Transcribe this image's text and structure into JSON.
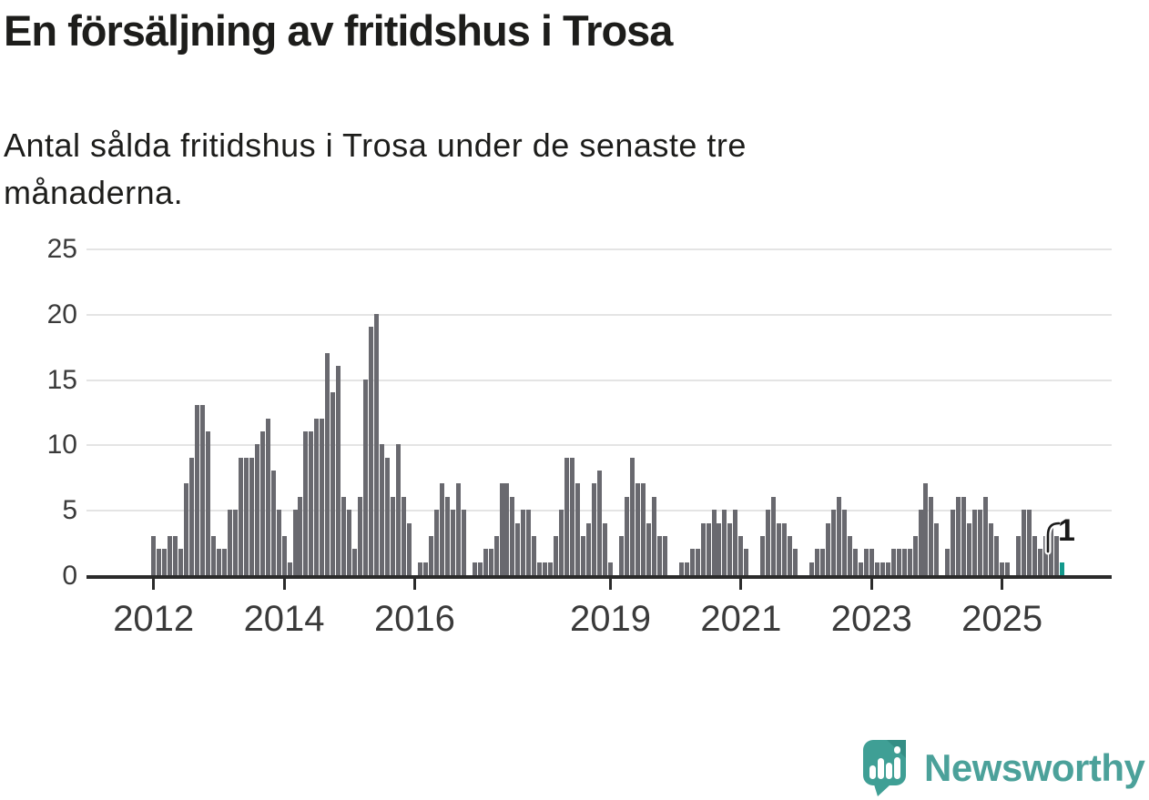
{
  "title": "En försäljning av fritidshus i Trosa",
  "subtitle": "Antal sålda fritidshus i Trosa under de senaste tre\nmånaderna.",
  "chart_data": {
    "type": "bar",
    "title": "En försäljning av fritidshus i Trosa",
    "subtitle": "Antal sålda fritidshus i Trosa under de senaste tre månaderna.",
    "x_start": "2012-01",
    "x_end": "2025-12",
    "x_unit": "month",
    "values": [
      3,
      2,
      2,
      3,
      3,
      2,
      7,
      9,
      13,
      13,
      11,
      3,
      2,
      2,
      5,
      5,
      9,
      9,
      9,
      10,
      11,
      12,
      8,
      5,
      3,
      1,
      5,
      6,
      11,
      11,
      12,
      12,
      17,
      14,
      16,
      6,
      5,
      2,
      6,
      15,
      19,
      20,
      10,
      9,
      6,
      10,
      6,
      4,
      0,
      1,
      1,
      3,
      5,
      7,
      6,
      5,
      7,
      5,
      0,
      1,
      1,
      2,
      2,
      3,
      7,
      7,
      6,
      4,
      5,
      5,
      3,
      1,
      1,
      1,
      3,
      5,
      9,
      9,
      7,
      3,
      4,
      7,
      8,
      4,
      1,
      0,
      3,
      6,
      9,
      7,
      7,
      4,
      6,
      3,
      3,
      0,
      0,
      1,
      1,
      2,
      2,
      4,
      4,
      5,
      4,
      5,
      4,
      5,
      3,
      2,
      0,
      0,
      3,
      5,
      6,
      4,
      4,
      3,
      2,
      0,
      0,
      1,
      2,
      2,
      4,
      5,
      6,
      5,
      3,
      2,
      1,
      2,
      2,
      1,
      1,
      1,
      2,
      2,
      2,
      2,
      3,
      5,
      7,
      6,
      4,
      0,
      2,
      5,
      6,
      6,
      4,
      5,
      5,
      6,
      4,
      3,
      1,
      1,
      0,
      3,
      5,
      5,
      3,
      2,
      3,
      4,
      3,
      1
    ],
    "ylim": [
      0,
      25
    ],
    "yticks": [
      0,
      5,
      10,
      15,
      20,
      25
    ],
    "xticks": [
      {
        "label": "2012",
        "month_index": 0
      },
      {
        "label": "2014",
        "month_index": 24
      },
      {
        "label": "2016",
        "month_index": 48
      },
      {
        "label": "2019",
        "month_index": 84
      },
      {
        "label": "2021",
        "month_index": 108
      },
      {
        "label": "2023",
        "month_index": 132
      },
      {
        "label": "2025",
        "month_index": 156
      }
    ],
    "grid": true,
    "legend": "none",
    "bar_color": "#69696f",
    "highlight_color": "#13998c",
    "highlight": "last-bar",
    "annotation": {
      "text": "1",
      "points_to": "last-bar"
    }
  },
  "footer": {
    "brand": "Newsworthy",
    "brand_color": "#4ba19a"
  }
}
